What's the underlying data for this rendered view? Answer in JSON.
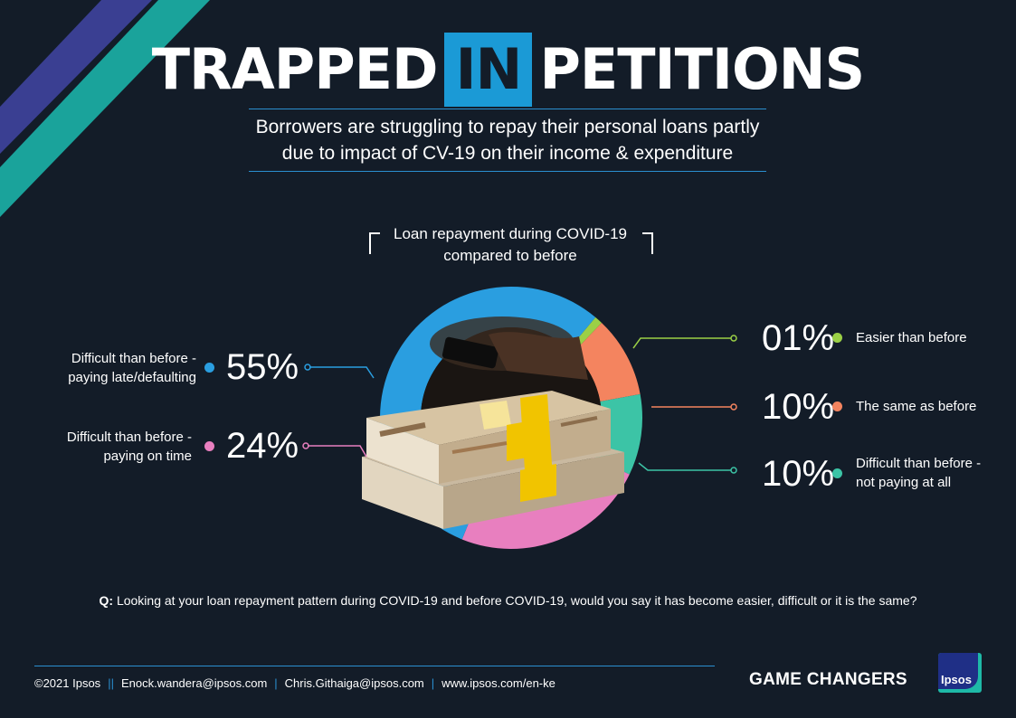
{
  "title": {
    "part1": "TRAPPED",
    "highlight": "IN",
    "part2": "PETITIONS"
  },
  "subtitle": "Borrowers are struggling to repay their personal loans partly due to impact of CV-19 on their income & expenditure",
  "colors": {
    "background": "#131c28",
    "accent_blue": "#1b9ad6",
    "stripe_purple": "#3a3f92",
    "stripe_teal": "#1aa39b"
  },
  "chart_data": {
    "type": "pie",
    "title": "Loan repayment during COVID-19 compared to before",
    "slices": [
      {
        "label": "Easier than before",
        "value": 1,
        "display": "01%",
        "color": "#9bd046"
      },
      {
        "label": "The same as before",
        "value": 10,
        "display": "10%",
        "color": "#f4845f"
      },
      {
        "label": "Difficult than before - not paying at all",
        "value": 10,
        "display": "10%",
        "color": "#3cc4a6"
      },
      {
        "label": "Difficult than before - paying on time",
        "value": 24,
        "display": "24%",
        "color": "#e87fbf"
      },
      {
        "label": "Difficult than before - paying late/defaulting",
        "value": 55,
        "display": "55%",
        "color": "#2a9ee0"
      }
    ],
    "labels": {
      "easier": {
        "pct": "01%",
        "text": "Easier than before"
      },
      "same": {
        "pct": "10%",
        "text": "The same as before"
      },
      "not_paying": {
        "pct": "10%",
        "line1": "Difficult than before -",
        "line2": "not paying at all"
      },
      "late": {
        "pct": "55%",
        "line1": "Difficult than before -",
        "line2": "paying late/defaulting"
      },
      "on_time": {
        "pct": "24%",
        "line1": "Difficult than before -",
        "line2": "paying on time"
      }
    }
  },
  "question": {
    "prefix": "Q:",
    "text": "Looking at your loan repayment pattern during COVID-19 and before COVID-19, would you say it has become easier, difficult or it is the same?"
  },
  "footer": {
    "copyright": "©2021 Ipsos",
    "email1": "Enock.wandera@ipsos.com",
    "email2": "Chris.Githaiga@ipsos.com",
    "website": "www.ipsos.com/en-ke",
    "tagline": "GAME CHANGERS",
    "logo_text": "Ipsos"
  }
}
